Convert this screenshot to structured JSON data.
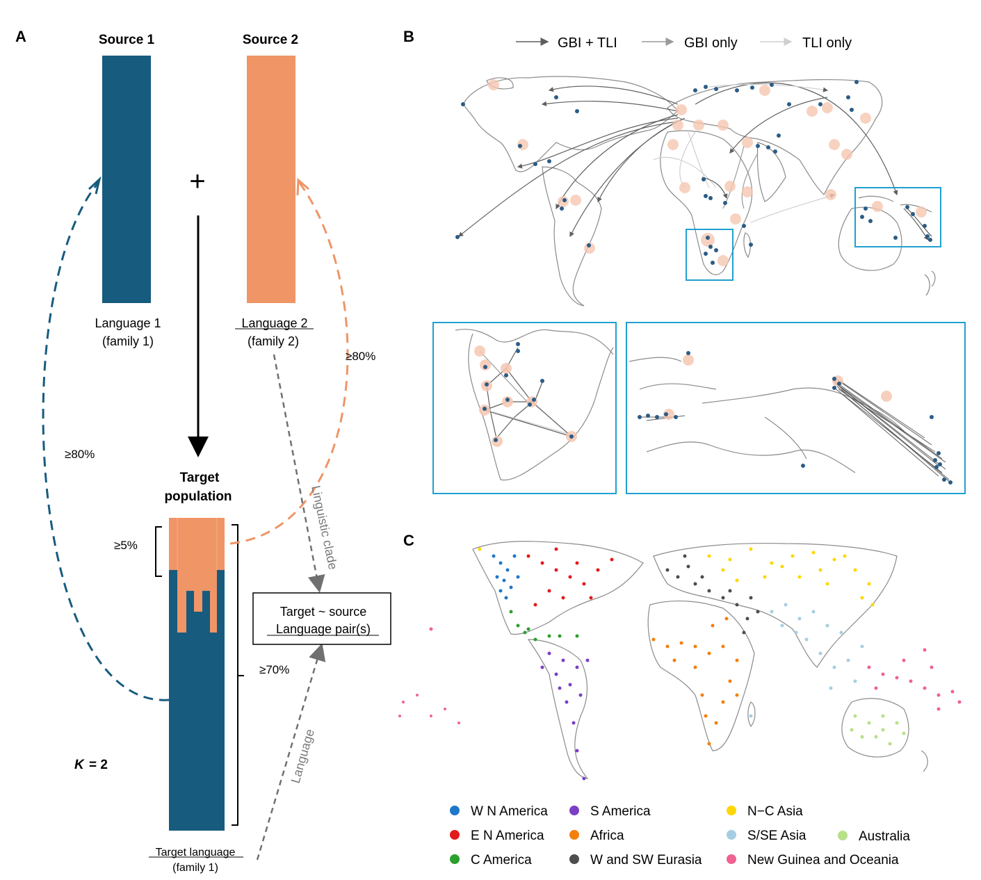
{
  "colors": {
    "source1": "#175b7e",
    "source2": "#ef9566",
    "inset_border": "#1fa0d0",
    "land_outline": "#8a8a8a",
    "gbi_tli_arrow": "#5f5f5f",
    "gbi_only_arrow": "#9a9a9a",
    "tli_only_arrow": "#cfcfcf",
    "site_dot": "#2b5c86",
    "site_halo": "#f6c7b2"
  },
  "panel_a": {
    "letter": "A",
    "source1": {
      "title": "Source 1",
      "language": "Language 1",
      "family": "(family 1)"
    },
    "source2": {
      "title": "Source 2",
      "language": "Language 2",
      "family": "(family 2)"
    },
    "plus": "+",
    "target": {
      "title_line1": "Target",
      "title_line2": "population",
      "language": "Target language",
      "family": "(family 1)"
    },
    "threshold_left": "≥80%",
    "threshold_right": "≥80%",
    "threshold_min_source2": "≥5%",
    "threshold_main": "≥70%",
    "linguistic_clade": "Linguistic clade",
    "language_arrow": "Language",
    "result_box": {
      "line1": "Target ~ source",
      "line2": "Language pair(s)"
    },
    "k_symbol": "K",
    "k_value": "= 2"
  },
  "panel_b": {
    "letter": "B",
    "legend": [
      {
        "label": "GBI + TLI",
        "shade": "#5f5f5f"
      },
      {
        "label": "GBI only",
        "shade": "#9a9a9a"
      },
      {
        "label": "TLI only",
        "shade": "#cfcfcf"
      }
    ]
  },
  "panel_c": {
    "letter": "C",
    "legend": [
      {
        "label": "W N America",
        "color": "#1f77c9"
      },
      {
        "label": "E N America",
        "color": "#e31a1c"
      },
      {
        "label": "C America",
        "color": "#2ca02c"
      },
      {
        "label": "S America",
        "color": "#7b3fc4"
      },
      {
        "label": "Africa",
        "color": "#f57f0c"
      },
      {
        "label": "W and SW Eurasia",
        "color": "#4d4d4d"
      },
      {
        "label": "N−C Asia",
        "color": "#ffd700"
      },
      {
        "label": "S/SE Asia",
        "color": "#a6cee3"
      },
      {
        "label": "New Guinea and Oceania",
        "color": "#f06292"
      },
      {
        "label": "Australia",
        "color": "#b7e08a"
      }
    ]
  }
}
